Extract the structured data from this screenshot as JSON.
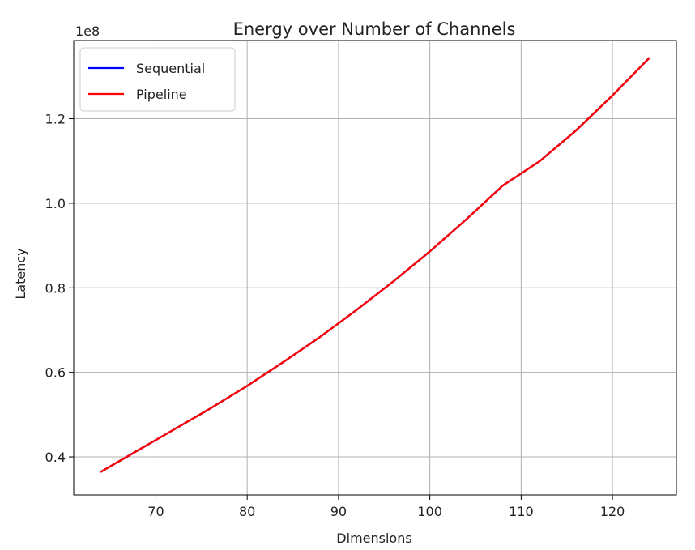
{
  "chart_data": {
    "type": "line",
    "title": "Energy over Number of Channels",
    "xlabel": "Dimensions",
    "ylabel": "Latency",
    "y_offset_text": "1e8",
    "xlim": [
      61.0,
      127.0
    ],
    "ylim": [
      0.31,
      1.385
    ],
    "x_ticks": [
      70,
      80,
      90,
      100,
      110,
      120
    ],
    "y_ticks": [
      0.4,
      0.6,
      0.8,
      1.0,
      1.2
    ],
    "x_tick_labels": [
      "70",
      "80",
      "90",
      "100",
      "110",
      "120"
    ],
    "y_tick_labels": [
      "0.4",
      "0.6",
      "0.8",
      "1.0",
      "1.2"
    ],
    "grid": true,
    "legend": {
      "position": "top-left"
    },
    "x": [
      64,
      68,
      72,
      76,
      80,
      84,
      88,
      92,
      96,
      100,
      104,
      108,
      112,
      116,
      120,
      124
    ],
    "series": [
      {
        "name": "Sequential",
        "color": "#0000ff",
        "values": [
          0.365,
          0.415,
          0.465,
          0.515,
          0.568,
          0.625,
          0.684,
          0.748,
          0.815,
          0.886,
          0.962,
          1.042,
          1.099,
          1.172,
          1.255,
          1.343
        ]
      },
      {
        "name": "Pipeline",
        "color": "#ff0000",
        "values": [
          0.365,
          0.415,
          0.465,
          0.515,
          0.568,
          0.625,
          0.684,
          0.748,
          0.815,
          0.886,
          0.962,
          1.042,
          1.099,
          1.172,
          1.255,
          1.343
        ]
      }
    ]
  }
}
